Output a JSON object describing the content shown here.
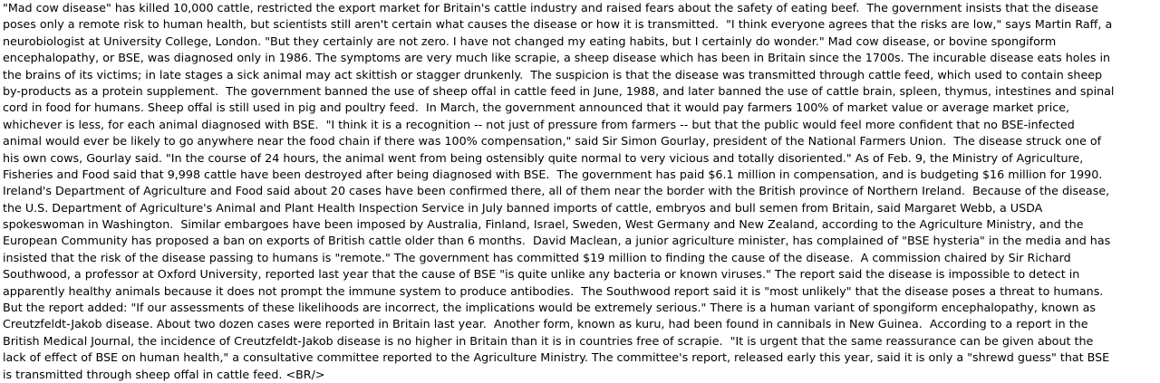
{
  "document": {
    "lines": [
      "\"Mad cow disease\" has killed 10,000 cattle, restricted the export market for Britain's cattle industry and raised fears about the safety of eating beef.  The government insists that the disease",
      "poses only a remote risk to human health, but scientists still aren't certain what causes the disease or how it is transmitted.  \"I think everyone agrees that the risks are low,\" says Martin Raff, a",
      "neurobiologist at University College, London. \"But they certainly are not zero. I have not changed my eating habits, but I certainly do wonder.\" Mad cow disease, or bovine spongiform",
      "encephalopathy, or BSE, was diagnosed only in 1986. The symptoms are very much like scrapie, a sheep disease which has been in Britain since the 1700s. The incurable disease eats holes in",
      "the brains of its victims; in late stages a sick animal may act skittish or stagger drunkenly.  The suspicion is that the disease was transmitted through cattle feed, which used to contain sheep",
      "by-products as a protein supplement.  The government banned the use of sheep offal in cattle feed in June, 1988, and later banned the use of cattle brain, spleen, thymus, intestines and spinal",
      "cord in food for humans. Sheep offal is still used in pig and poultry feed.  In March, the government announced that it would pay farmers 100% of market value or average market price,",
      "whichever is less, for each animal diagnosed with BSE.  \"I think it is a recognition -- not just of pressure from farmers -- but that the public would feel more confident that no BSE-infected",
      "animal would ever be likely to go anywhere near the food chain if there was 100% compensation,\" said Sir Simon Gourlay, president of the National Farmers Union.  The disease struck one of",
      "his own cows, Gourlay said. \"In the course of 24 hours, the animal went from being ostensibly quite normal to very vicious and totally disoriented.\" As of Feb. 9, the Ministry of Agriculture,",
      "Fisheries and Food said that 9,998 cattle have been destroyed after being diagnosed with BSE.  The government has paid $6.1 million in compensation, and is budgeting $16 million for 1990.",
      "Ireland's Department of Agriculture and Food said about 20 cases have been confirmed there, all of them near the border with the British province of Northern Ireland.  Because of the disease,",
      "the U.S. Department of Agriculture's Animal and Plant Health Inspection Service in July banned imports of cattle, embryos and bull semen from Britain, said Margaret Webb, a USDA",
      "spokeswoman in Washington.  Similar embargoes have been imposed by Australia, Finland, Israel, Sweden, West Germany and New Zealand, according to the Agriculture Ministry, and the",
      "European Community has proposed a ban on exports of British cattle older than 6 months.  David Maclean, a junior agriculture minister, has complained of \"BSE hysteria\" in the media and has",
      "insisted that the risk of the disease passing to humans is \"remote.\" The government has committed $19 million to finding the cause of the disease.  A commission chaired by Sir Richard",
      "Southwood, a professor at Oxford University, reported last year that the cause of BSE \"is quite unlike any bacteria or known viruses.\" The report said the disease is impossible to detect in",
      "apparently healthy animals because it does not prompt the immune system to produce antibodies.  The Southwood report said it is \"most unlikely\" that the disease poses a threat to humans.",
      "But the report added: \"If our assessments of these likelihoods are incorrect, the implications would be extremely serious.\" There is a human variant of spongiform encephalopathy, known as",
      "Creutzfeldt-Jakob disease. About two dozen cases were reported in Britain last year.  Another form, known as kuru, had been found in cannibals in New Guinea.  According to a report in the",
      "British Medical Journal, the incidence of Creutzfeldt-Jakob disease is no higher in Britain than it is in countries free of scrapie.  \"It is urgent that the same reassurance can be given about the",
      "lack of effect of BSE on human health,\" a consultative committee reported to the Agriculture Ministry. The committee's report, released early this year, said it is only a \"shrewd guess\" that BSE",
      "is transmitted through sheep offal in cattle feed. <BR/>"
    ]
  }
}
